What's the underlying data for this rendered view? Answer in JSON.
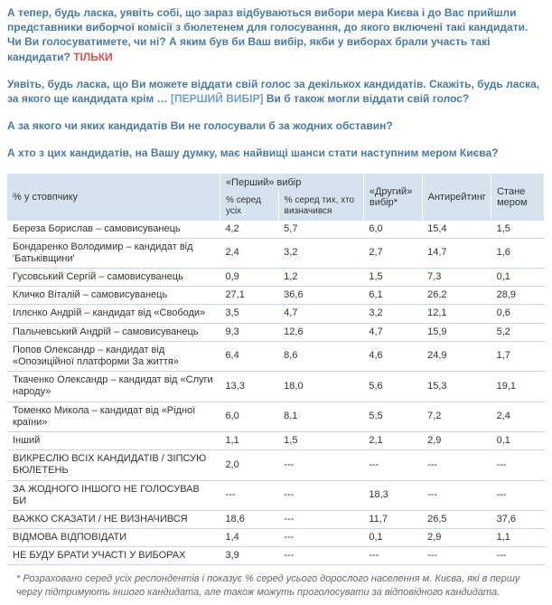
{
  "paragraphs": {
    "p1_a": "А тепер, будь ласка, уявіть собі, що зараз відбуваються вибори мера Києва і до Вас прийшли представники виборчої комісії з бюлетенем для голосування, до якого включені такі кандидати. Чи Ви голосуватимете, чи ні? А яким був би Ваш вибір, якби у виборах брали участь такі кандидати? ",
    "p1_only": "ТІЛЬКИ",
    "p2_a": "Уявіть, будь ласка, що Ви можете віддати свій голос за декількох кандидатів. Скажіть, будь ласка, за якого ще кандидата крім … ",
    "p2_insert": "[ПЕРШИЙ ВИБІР]",
    "p2_b": " Ви б також могли віддати свій голос?",
    "p3": "А за якого чи яких кандидатів Ви не голосували б за жодних обставин?",
    "p4": "А хто з цих кандидатів, на Вашу думку, має найвищі шанси стати наступним мером Києва?"
  },
  "table": {
    "col_widths": [
      "200px",
      "55px",
      "80px",
      "55px",
      "65px",
      "50px"
    ],
    "header": {
      "row_label": "% у стовпчику",
      "group_first": "«Перший» вибір",
      "sub1": "% серед усіх",
      "sub2": "% серед тих, хто визначився",
      "second_choice": "«Другий» вибір*",
      "anti": "Антирейтинг",
      "mayor": "Стане мером"
    },
    "rows": [
      {
        "label": "Береза Борислав – самовисуванець",
        "c1": "4,2",
        "c2": "5,7",
        "c3": "6,0",
        "c4": "15,4",
        "c5": "1,5"
      },
      {
        "label": "Бондаренко Володимир – кандидат від 'Батьківщини'",
        "c1": "2,4",
        "c2": "3,2",
        "c3": "2,7",
        "c4": "14,7",
        "c5": "1,6"
      },
      {
        "label": "Гусовський Сергій – самовисуванець",
        "c1": "0,9",
        "c2": "1,2",
        "c3": "1,5",
        "c4": "7,3",
        "c5": "0,1"
      },
      {
        "label": "Кличко Віталій – самовисуванець",
        "c1": "27,1",
        "c2": "36,6",
        "c3": "6,1",
        "c4": "26,2",
        "c5": "28,9"
      },
      {
        "label": "Іллєнко Андрій – кандидат від «Свободи»",
        "c1": "3,5",
        "c2": "4,7",
        "c3": "3,2",
        "c4": "12,1",
        "c5": "0,6"
      },
      {
        "label": "Пальчевський Андрій – самовисуванець",
        "c1": "9,3",
        "c2": "12,6",
        "c3": "4,7",
        "c4": "15,9",
        "c5": "5,2"
      },
      {
        "label": "Попов Олександр – кандидат від «Опозиційної платформи За життя»",
        "c1": "6,4",
        "c2": "8,6",
        "c3": "4,6",
        "c4": "24,9",
        "c5": "1,7"
      },
      {
        "label": "Ткаченко Олександр – кандидат від «Слуги народу»",
        "c1": "13,3",
        "c2": "18,0",
        "c3": "5,6",
        "c4": "15,3",
        "c5": "19,1"
      },
      {
        "label": "Томенко Микола – кандидат від «Рідної країни»",
        "c1": "6,0",
        "c2": "8,1",
        "c3": "5,5",
        "c4": "7,2",
        "c5": "2,4"
      },
      {
        "label": "Інший",
        "c1": "1,1",
        "c2": "1,5",
        "c3": "2,1",
        "c4": "2,9",
        "c5": "0,1"
      },
      {
        "label": "ВИКРЕСЛЮ ВСІХ КАНДИДАТІВ / ЗІПСУЮ БЮЛЕТЕНЬ",
        "c1": "2,0",
        "c2": "---",
        "c3": "---",
        "c4": "---",
        "c5": "---"
      },
      {
        "label": "ЗА ЖОДНОГО ІНШОГО НЕ ГОЛОСУВАВ БИ",
        "c1": "---",
        "c2": "---",
        "c3": "18,3",
        "c4": "---",
        "c5": "---"
      },
      {
        "label": "ВАЖКО СКАЗАТИ / НЕ ВИЗНАЧИВСЯ",
        "c1": "18,6",
        "c2": "---",
        "c3": "11,7",
        "c4": "26,5",
        "c5": "37,6"
      },
      {
        "label": "ВІДМОВА ВІДПОВІДАТИ",
        "c1": "1,4",
        "c2": "---",
        "c3": "0,1",
        "c4": "2,9",
        "c5": "1,1"
      },
      {
        "label": "НЕ БУДУ БРАТИ УЧАСТІ У ВИБОРАХ",
        "c1": "3,9",
        "c2": "---",
        "c3": "---",
        "c4": "---",
        "c5": "---"
      }
    ]
  },
  "footnote": "* Розраховано серед усіх респондентів і показує % серед усього дорослого населення м. Києва, які в першу чергу підтримують іншого кандидата, але також можуть проголосувати за відповідного кандидата."
}
